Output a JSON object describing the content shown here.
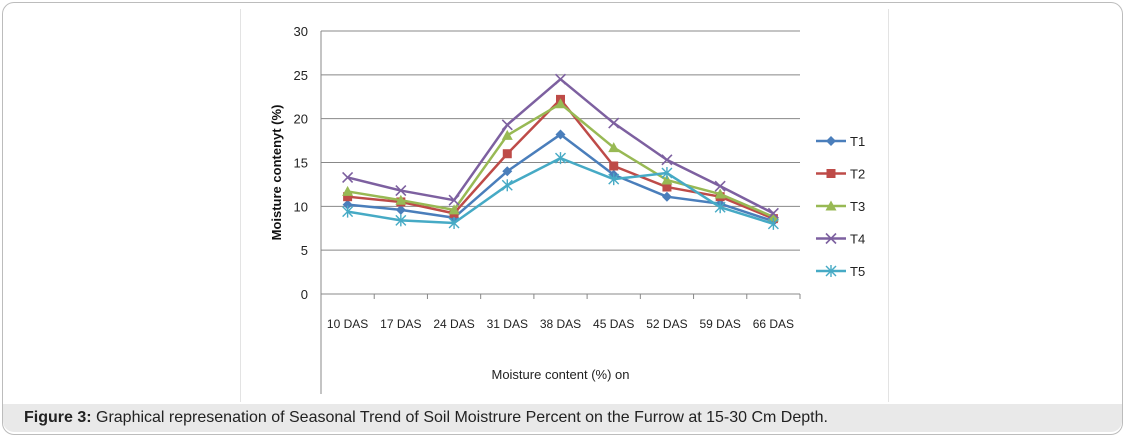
{
  "chart_data": {
    "type": "line",
    "title": "",
    "xlabel": "Moisture content (%) on",
    "ylabel": "Moisture contenyt (%)",
    "ylim": [
      0,
      30
    ],
    "yticks": [
      0,
      5,
      10,
      15,
      20,
      25,
      30
    ],
    "grid": true,
    "legend_position": "right",
    "categories": [
      "10 DAS",
      "17 DAS",
      "24 DAS",
      "31 DAS",
      "38 DAS",
      "45 DAS",
      "52 DAS",
      "59 DAS",
      "66 DAS"
    ],
    "series": [
      {
        "name": "T1",
        "color": "#4a7ebb",
        "marker": "diamond",
        "values": [
          10.2,
          9.6,
          8.7,
          14.0,
          18.2,
          13.6,
          11.1,
          10.3,
          8.3
        ]
      },
      {
        "name": "T2",
        "color": "#be4b48",
        "marker": "square",
        "values": [
          11.1,
          10.5,
          9.2,
          16.0,
          22.2,
          14.6,
          12.2,
          11.1,
          8.6
        ]
      },
      {
        "name": "T3",
        "color": "#98b954",
        "marker": "triangle",
        "values": [
          11.7,
          10.7,
          9.6,
          18.1,
          21.7,
          16.7,
          13.0,
          11.4,
          8.8
        ]
      },
      {
        "name": "T4",
        "color": "#7d60a0",
        "marker": "x",
        "values": [
          13.3,
          11.8,
          10.7,
          19.3,
          24.5,
          19.5,
          15.3,
          12.3,
          9.2
        ]
      },
      {
        "name": "T5",
        "color": "#46aac5",
        "marker": "star",
        "values": [
          9.4,
          8.4,
          8.1,
          12.4,
          15.5,
          13.1,
          13.8,
          9.9,
          8.0
        ]
      }
    ]
  },
  "caption": {
    "label": "Figure 3:",
    "text": " Graphical represenation of  Seasonal Trend of Soil  Moistrure Percent on the Furrow at 15-30 Cm Depth."
  }
}
